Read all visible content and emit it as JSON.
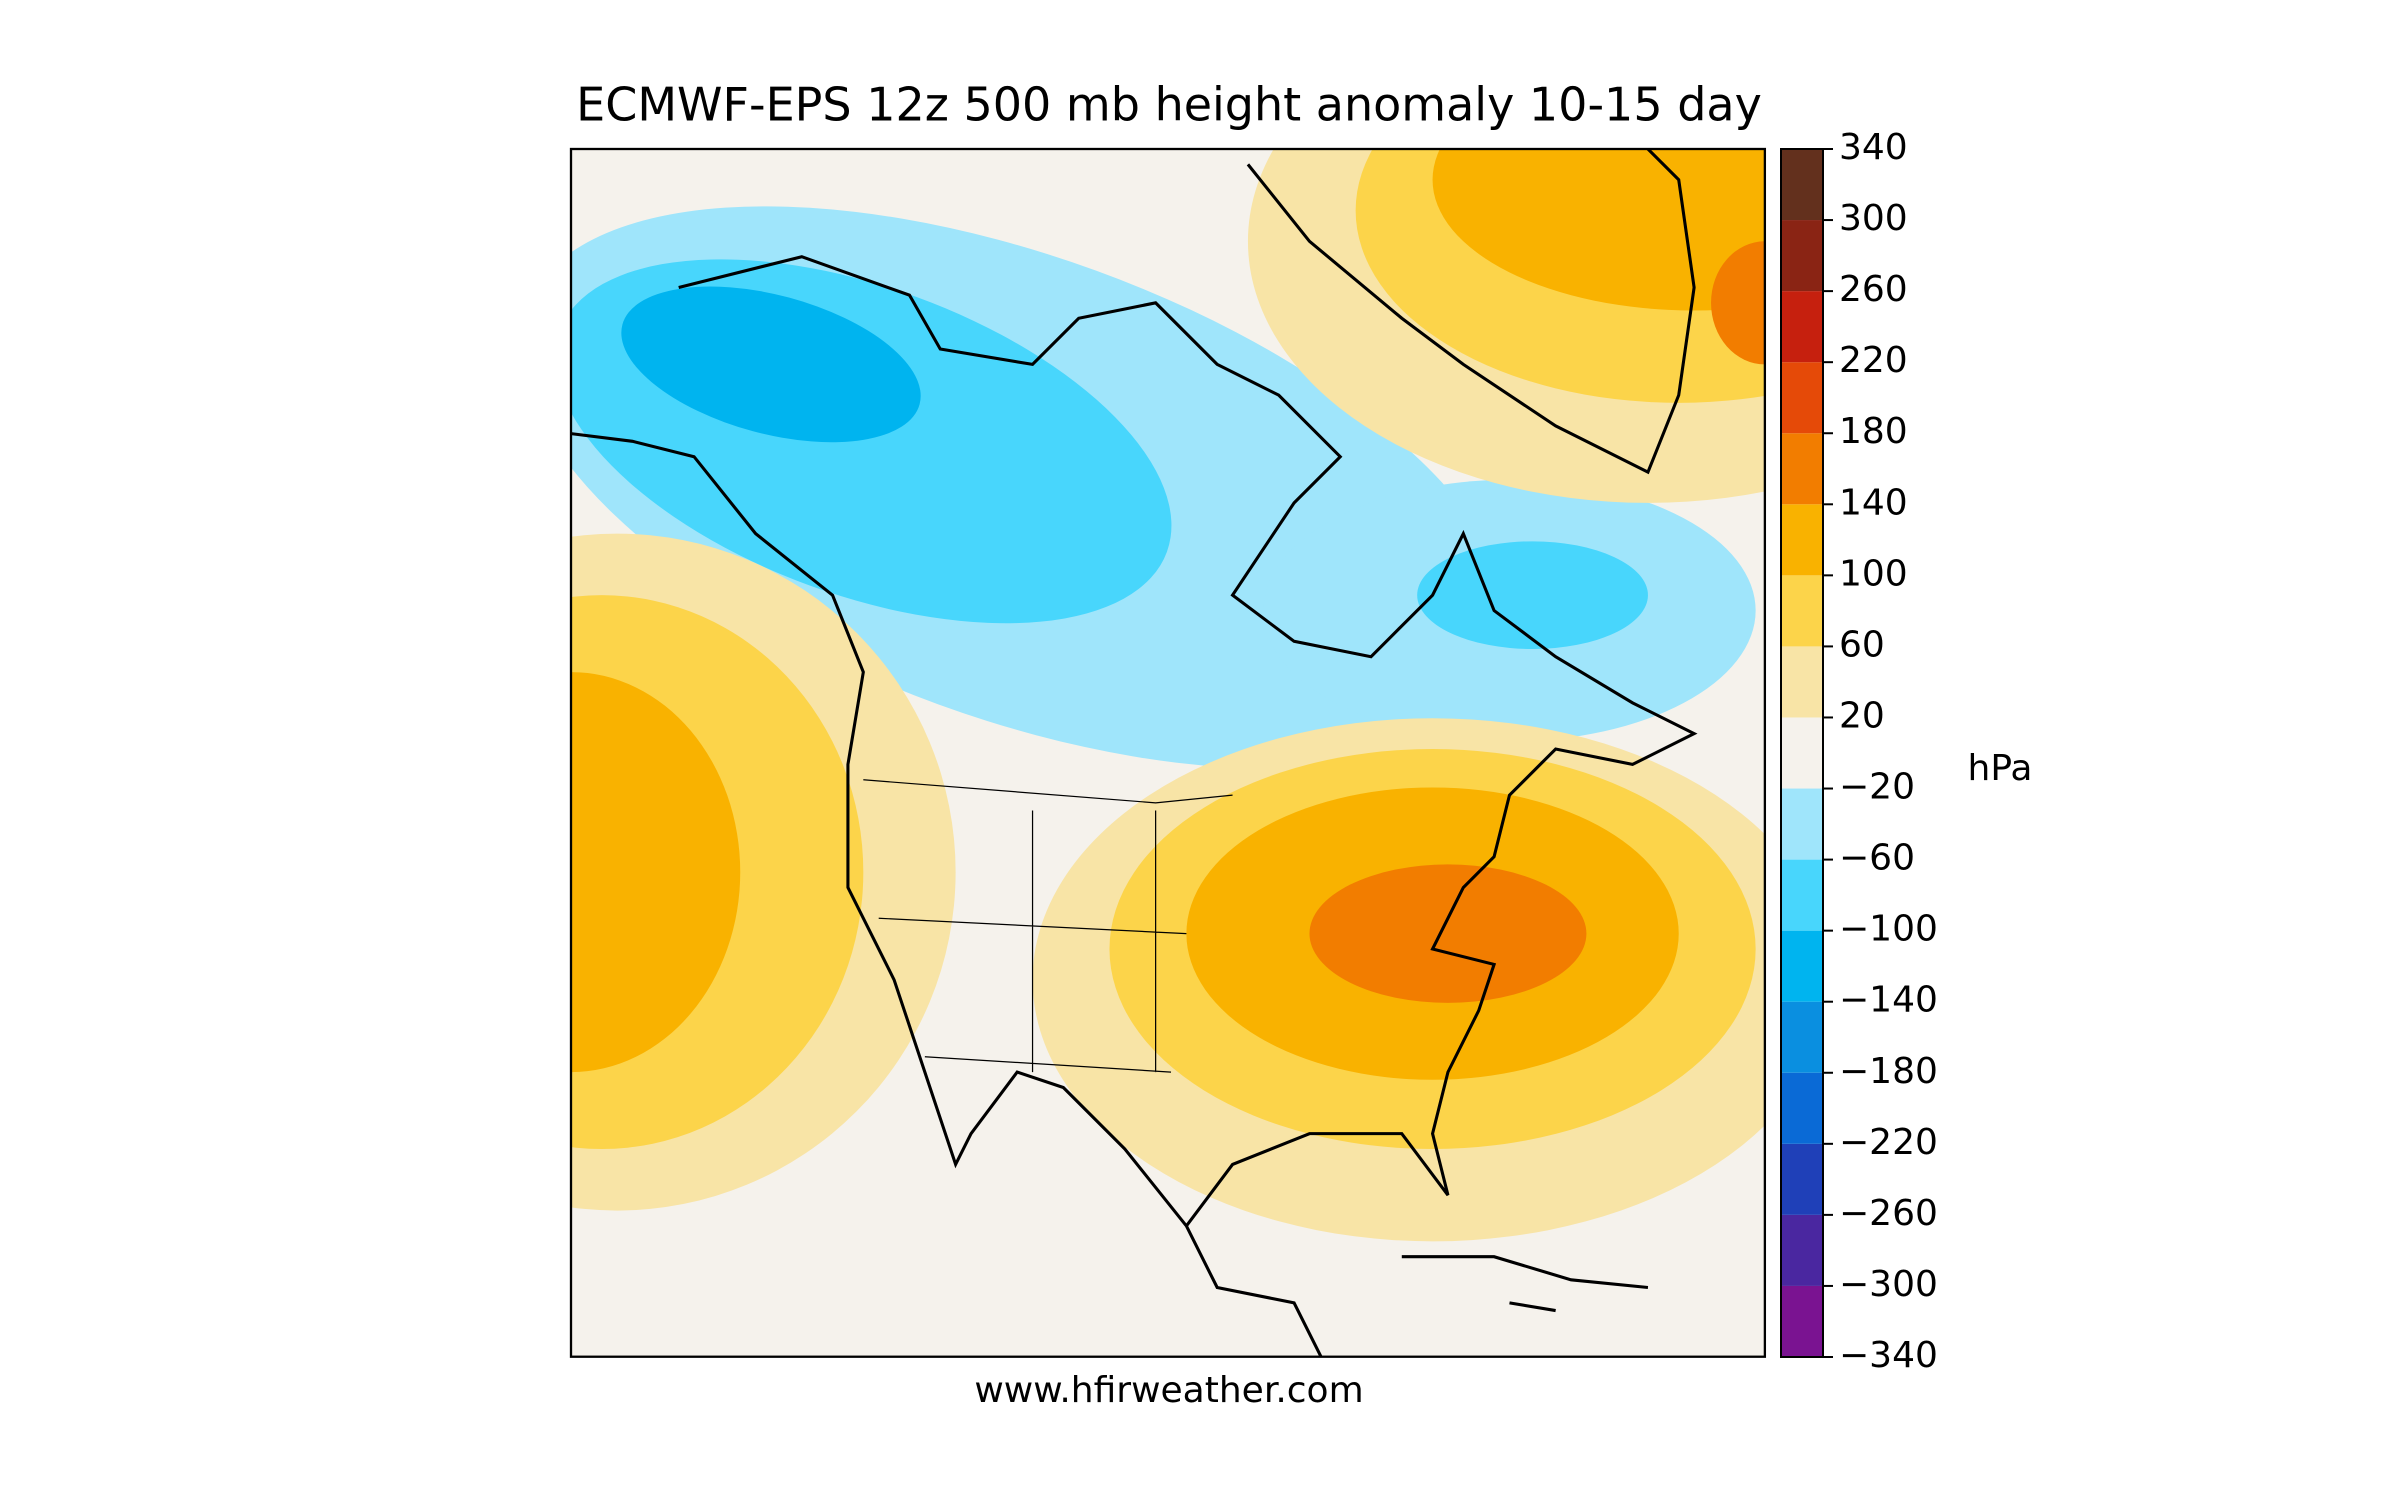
{
  "title": "ECMWF-EPS 12z 500 mb height anomaly 10-15 day",
  "credit": "www.hfirweather.com",
  "colorbar": {
    "unit": "hPa",
    "ticks": [
      {
        "value": -340,
        "label": "−340"
      },
      {
        "value": -300,
        "label": "−300"
      },
      {
        "value": -260,
        "label": "−260"
      },
      {
        "value": -220,
        "label": "−220"
      },
      {
        "value": -180,
        "label": "−180"
      },
      {
        "value": -140,
        "label": "−140"
      },
      {
        "value": -100,
        "label": "−100"
      },
      {
        "value": -60,
        "label": "−60"
      },
      {
        "value": -20,
        "label": "−20"
      },
      20,
      60,
      100,
      140,
      180,
      220,
      260,
      300,
      340
    ],
    "colors": [
      "#7a1391",
      "#4a27a0",
      "#1f40b8",
      "#0a6ad6",
      "#0a8fe0",
      "#00b4ef",
      "#48d6fc",
      "#9fe5fb",
      "#f5f2ec",
      "#f8e4a6",
      "#fcd44a",
      "#f9b200",
      "#f27d00",
      "#e54a08",
      "#c6200e",
      "#8a2414",
      "#63301d"
    ]
  }
}
